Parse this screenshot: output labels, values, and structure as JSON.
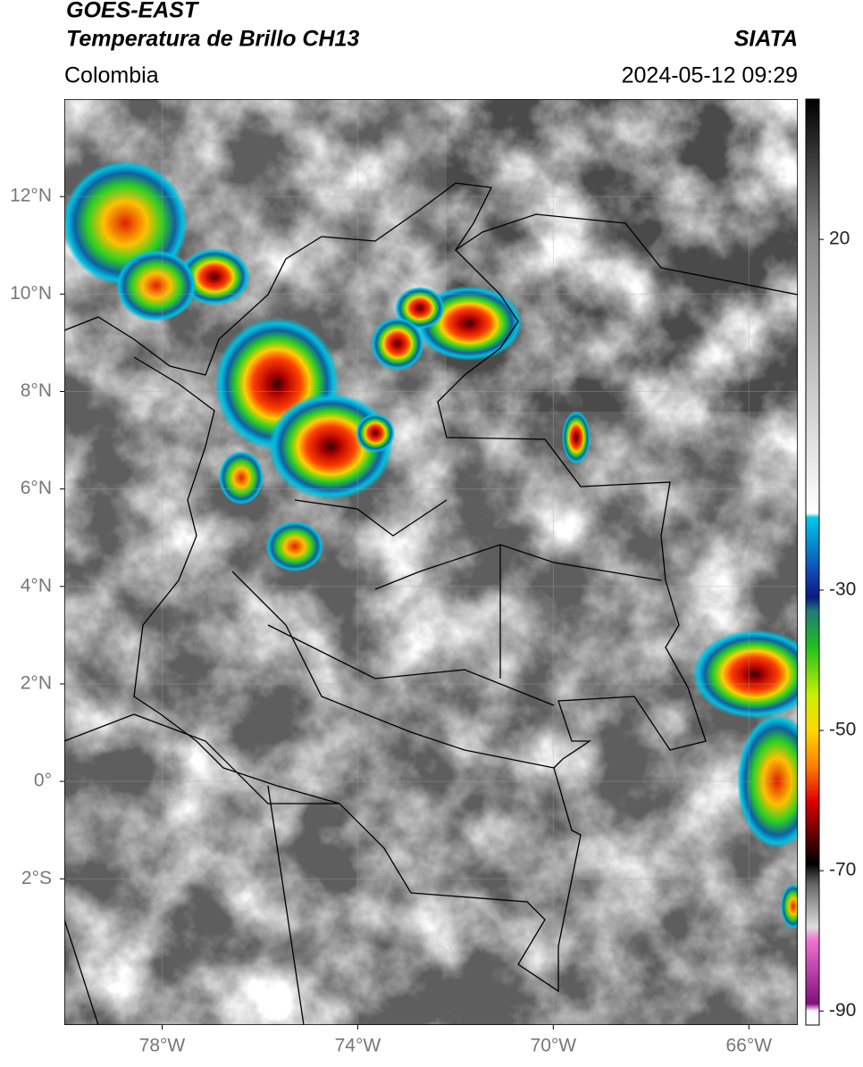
{
  "header": {
    "title": "GOES-EAST",
    "subtitle": "Temperatura de Brillo CH13",
    "source": "SIATA",
    "region": "Colombia",
    "datetime": "2024-05-12 09:29"
  },
  "map": {
    "lonlim": [
      -80,
      -65
    ],
    "latlim": [
      -5,
      14
    ],
    "lon_ticks": [
      {
        "value": -78,
        "label": "78°W"
      },
      {
        "value": -74,
        "label": "74°W"
      },
      {
        "value": -70,
        "label": "70°W"
      },
      {
        "value": -66,
        "label": "66°W"
      }
    ],
    "lat_ticks": [
      {
        "value": 12,
        "label": "12°N"
      },
      {
        "value": 10,
        "label": "10°N"
      },
      {
        "value": 8,
        "label": "8°N"
      },
      {
        "value": 6,
        "label": "6°N"
      },
      {
        "value": 4,
        "label": "4°N"
      },
      {
        "value": 2,
        "label": "2°N"
      },
      {
        "value": 0,
        "label": "0°"
      },
      {
        "value": -2,
        "label": "2°S"
      }
    ]
  },
  "colorbar": {
    "lim": [
      -92,
      40
    ],
    "ticks": [
      20,
      -30,
      -50,
      -70,
      -90
    ]
  }
}
